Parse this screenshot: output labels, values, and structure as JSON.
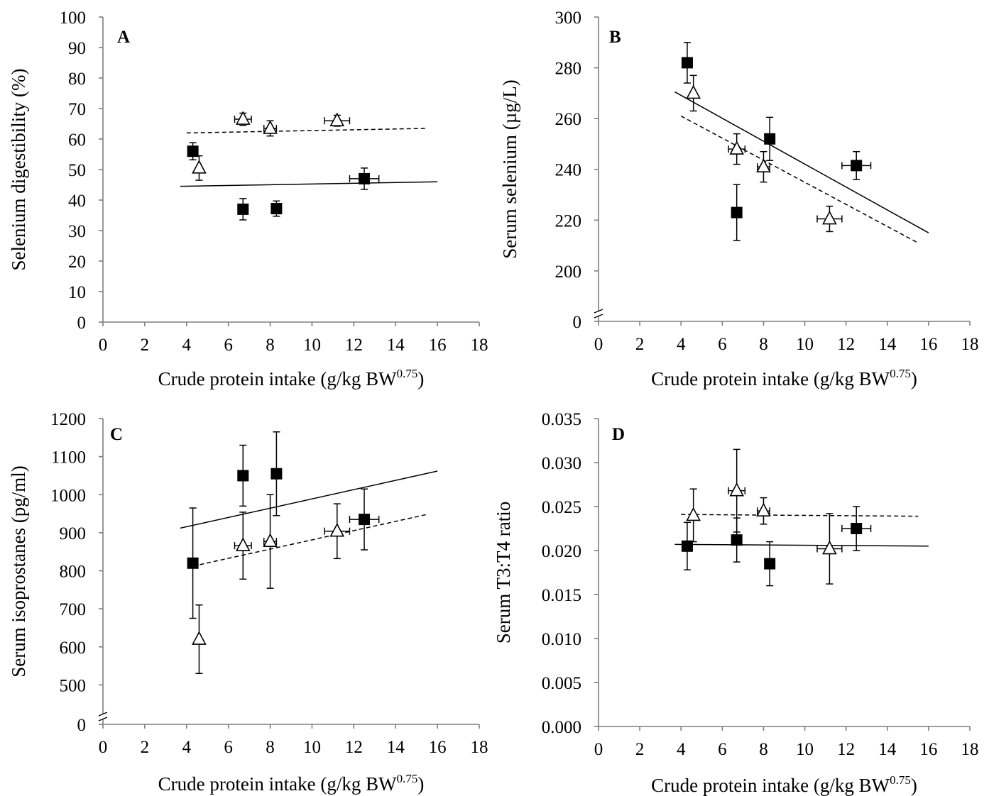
{
  "chart_data": [
    {
      "type": "scatter",
      "panel_label": "A",
      "xlabel": "Crude protein intake (g/kg BW",
      "xlabel_superscript": "0.75",
      "xlabel_suffix": ")",
      "ylabel": "Selenium digestibility (%)",
      "xlim": [
        0,
        18
      ],
      "ylim": [
        0,
        100
      ],
      "x_ticks": [
        "0",
        "2",
        "4",
        "6",
        "8",
        "10",
        "12",
        "14",
        "16",
        "18"
      ],
      "y_ticks": [
        "0",
        "10",
        "20",
        "30",
        "40",
        "50",
        "60",
        "70",
        "80",
        "90",
        "100"
      ],
      "axis_break": false,
      "series": [
        {
          "marker": "filled-square",
          "line_style": "solid",
          "points": [
            {
              "x": 4.3,
              "y": 56,
              "yerr": 2.8,
              "xerr": 0
            },
            {
              "x": 6.7,
              "y": 37,
              "yerr": 3.5,
              "xerr": 0
            },
            {
              "x": 8.3,
              "y": 37.2,
              "yerr": 2.5,
              "xerr": 0
            },
            {
              "x": 12.5,
              "y": 47,
              "yerr": 3.5,
              "xerr": 0.7
            }
          ],
          "trend": [
            [
              3.7,
              44.5
            ],
            [
              16.0,
              46.0
            ]
          ]
        },
        {
          "marker": "open-triangle",
          "line_style": "dashed",
          "points": [
            {
              "x": 4.6,
              "y": 50.5,
              "yerr": 4.0,
              "xerr": 0
            },
            {
              "x": 6.7,
              "y": 66.5,
              "yerr": 2.0,
              "xerr": 0.4
            },
            {
              "x": 8.0,
              "y": 63.5,
              "yerr": 2.5,
              "xerr": 0.3
            },
            {
              "x": 11.2,
              "y": 66,
              "yerr": 1.8,
              "xerr": 0.6
            }
          ],
          "trend": [
            [
              4.0,
              62.0
            ],
            [
              15.5,
              63.5
            ]
          ]
        }
      ]
    },
    {
      "type": "scatter",
      "panel_label": "B",
      "xlabel": "Crude protein intake (g/kg BW",
      "xlabel_superscript": "0.75",
      "xlabel_suffix": ")",
      "ylabel": "Serum selenium (µg/L)",
      "xlim": [
        0,
        18
      ],
      "ylim": [
        186,
        300
      ],
      "x_ticks": [
        "0",
        "2",
        "4",
        "6",
        "8",
        "10",
        "12",
        "14",
        "16",
        "18"
      ],
      "y_ticks": [
        "200",
        "220",
        "240",
        "260",
        "280",
        "300"
      ],
      "y_zero_label": "0",
      "axis_break": true,
      "series": [
        {
          "marker": "filled-square",
          "line_style": "solid",
          "points": [
            {
              "x": 4.3,
              "y": 282,
              "yerr": 8,
              "xerr": 0
            },
            {
              "x": 6.7,
              "y": 223,
              "yerr": 11,
              "xerr": 0
            },
            {
              "x": 8.3,
              "y": 252,
              "yerr": 8.5,
              "xerr": 0
            },
            {
              "x": 12.5,
              "y": 241.5,
              "yerr": 5.5,
              "xerr": 0.7
            }
          ],
          "trend": [
            [
              3.7,
              270.5
            ],
            [
              16.0,
              215.0
            ]
          ]
        },
        {
          "marker": "open-triangle",
          "line_style": "dashed",
          "points": [
            {
              "x": 4.6,
              "y": 270,
              "yerr": 7,
              "xerr": 0
            },
            {
              "x": 6.7,
              "y": 248,
              "yerr": 6,
              "xerr": 0.4
            },
            {
              "x": 8.0,
              "y": 241,
              "yerr": 6,
              "xerr": 0.3
            },
            {
              "x": 11.2,
              "y": 220.5,
              "yerr": 5,
              "xerr": 0.6
            }
          ],
          "trend": [
            [
              4.0,
              261.0
            ],
            [
              15.5,
              211.0
            ]
          ]
        }
      ]
    },
    {
      "type": "scatter",
      "panel_label": "C",
      "xlabel": "Crude protein intake (g/kg BW",
      "xlabel_superscript": "0.75",
      "xlabel_suffix": ")",
      "ylabel": "Serum isoprostanes (pg/ml)",
      "xlim": [
        0,
        18
      ],
      "ylim": [
        400,
        1200
      ],
      "x_ticks": [
        "0",
        "2",
        "4",
        "6",
        "8",
        "10",
        "12",
        "14",
        "16",
        "18"
      ],
      "y_ticks": [
        "500",
        "600",
        "700",
        "800",
        "900",
        "1000",
        "1100",
        "1200"
      ],
      "y_zero_label": "0",
      "axis_break": true,
      "series": [
        {
          "marker": "filled-square",
          "line_style": "solid",
          "points": [
            {
              "x": 4.3,
              "y": 820,
              "yerr": 145,
              "xerr": 0
            },
            {
              "x": 6.7,
              "y": 1050,
              "yerr": 80,
              "xerr": 0
            },
            {
              "x": 8.3,
              "y": 1055,
              "yerr": 110,
              "xerr": 0
            },
            {
              "x": 12.5,
              "y": 935,
              "yerr": 80,
              "xerr": 0.7
            }
          ],
          "trend": [
            [
              3.7,
              912
            ],
            [
              16.0,
              1062
            ]
          ]
        },
        {
          "marker": "open-triangle",
          "line_style": "dashed",
          "points": [
            {
              "x": 4.6,
              "y": 620,
              "yerr": 90,
              "xerr": 0
            },
            {
              "x": 6.7,
              "y": 866,
              "yerr": 88,
              "xerr": 0.4
            },
            {
              "x": 8.0,
              "y": 877,
              "yerr": 123,
              "xerr": 0.3
            },
            {
              "x": 11.2,
              "y": 904,
              "yerr": 72,
              "xerr": 0.6
            }
          ],
          "trend": [
            [
              4.3,
              812
            ],
            [
              15.5,
              948
            ]
          ]
        }
      ]
    },
    {
      "type": "scatter",
      "panel_label": "D",
      "xlabel": "Crude protein intake (g/kg BW",
      "xlabel_superscript": "0.75",
      "xlabel_suffix": ")",
      "ylabel": "Serum T3:T4 ratio",
      "xlim": [
        0,
        18
      ],
      "ylim": [
        0,
        0.035
      ],
      "x_ticks": [
        "0",
        "2",
        "4",
        "6",
        "8",
        "10",
        "12",
        "14",
        "16",
        "18"
      ],
      "y_ticks": [
        "0.000",
        "0.005",
        "0.010",
        "0.015",
        "0.020",
        "0.025",
        "0.030",
        "0.035"
      ],
      "axis_break": false,
      "series": [
        {
          "marker": "filled-square",
          "line_style": "solid",
          "points": [
            {
              "x": 4.3,
              "y": 0.0205,
              "yerr": 0.0027,
              "xerr": 0
            },
            {
              "x": 6.7,
              "y": 0.0212,
              "yerr": 0.0025,
              "xerr": 0
            },
            {
              "x": 8.3,
              "y": 0.0185,
              "yerr": 0.0025,
              "xerr": 0
            },
            {
              "x": 12.5,
              "y": 0.0225,
              "yerr": 0.0025,
              "xerr": 0.7
            }
          ],
          "trend": [
            [
              3.7,
              0.0207
            ],
            [
              16.0,
              0.0205
            ]
          ]
        },
        {
          "marker": "open-triangle",
          "line_style": "dashed",
          "points": [
            {
              "x": 4.6,
              "y": 0.024,
              "yerr": 0.003,
              "xerr": 0
            },
            {
              "x": 6.7,
              "y": 0.0268,
              "yerr": 0.0047,
              "xerr": 0.4
            },
            {
              "x": 8.0,
              "y": 0.0245,
              "yerr": 0.0015,
              "xerr": 0.3
            },
            {
              "x": 11.2,
              "y": 0.0202,
              "yerr": 0.004,
              "xerr": 0.6
            }
          ],
          "trend": [
            [
              4.0,
              0.0241
            ],
            [
              15.5,
              0.0239
            ]
          ]
        }
      ]
    }
  ]
}
